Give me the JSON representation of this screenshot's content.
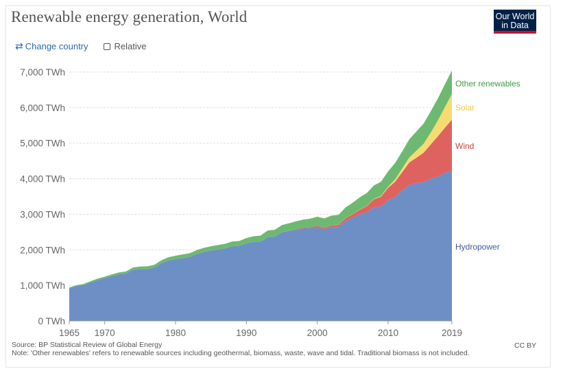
{
  "header": {
    "title": "Renewable energy generation, World",
    "logo_line1": "Our World",
    "logo_line2": "in Data"
  },
  "controls": {
    "change_country_label": "Change country",
    "relative_label": "Relative"
  },
  "footer": {
    "source": "Source: BP Statistical Review of Global Energy",
    "note": "Note: 'Other renewables' refers to renewable sources including geothermal, biomass, waste, wave and tidal. Traditional biomass is not included.",
    "license": "CC BY"
  },
  "icons": {
    "change_country": "swap-arrows-icon",
    "relative": "checkbox-icon"
  },
  "chart_data": {
    "type": "area",
    "stacked": true,
    "title": "Renewable energy generation, World",
    "ylim": [
      0,
      7000
    ],
    "y_ticks": [
      0,
      1000,
      2000,
      3000,
      4000,
      5000,
      6000,
      7000
    ],
    "y_tick_labels": [
      "0 TWh",
      "1,000 TWh",
      "2,000 TWh",
      "3,000 TWh",
      "4,000 TWh",
      "5,000 TWh",
      "6,000 TWh",
      "7,000 TWh"
    ],
    "x_ticks": [
      1965,
      1970,
      1980,
      1990,
      2000,
      2010,
      2019
    ],
    "x_tick_labels": [
      "1965",
      "1970",
      "1980",
      "1990",
      "2000",
      "2010",
      "2019"
    ],
    "xlim": [
      1965,
      2019
    ],
    "grid": true,
    "legend_placement": "right, inline labels at series ends",
    "x": [
      1965,
      1966,
      1967,
      1968,
      1969,
      1970,
      1971,
      1972,
      1973,
      1974,
      1975,
      1976,
      1977,
      1978,
      1979,
      1980,
      1981,
      1982,
      1983,
      1984,
      1985,
      1986,
      1987,
      1988,
      1989,
      1990,
      1991,
      1992,
      1993,
      1994,
      1995,
      1996,
      1997,
      1998,
      1999,
      2000,
      2001,
      2002,
      2003,
      2004,
      2005,
      2006,
      2007,
      2008,
      2009,
      2010,
      2011,
      2012,
      2013,
      2014,
      2015,
      2016,
      2017,
      2018,
      2019
    ],
    "series": [
      {
        "name": "Hydropower",
        "color": "#6d8fc5",
        "label_color": "#3e5c99",
        "values": [
          920,
          980,
          1010,
          1080,
          1150,
          1200,
          1260,
          1310,
          1330,
          1440,
          1460,
          1460,
          1500,
          1620,
          1700,
          1740,
          1770,
          1800,
          1880,
          1940,
          1980,
          2010,
          2040,
          2100,
          2110,
          2180,
          2220,
          2230,
          2360,
          2370,
          2490,
          2530,
          2570,
          2600,
          2610,
          2650,
          2580,
          2640,
          2640,
          2810,
          2900,
          3000,
          3060,
          3200,
          3220,
          3400,
          3480,
          3670,
          3820,
          3880,
          3900,
          4000,
          4060,
          4160,
          4230
        ]
      },
      {
        "name": "Wind",
        "color": "#de6360",
        "label_color": "#c93f3a",
        "values": [
          0,
          0,
          0,
          0,
          0,
          0,
          0,
          0,
          0,
          0,
          0,
          0,
          0,
          0,
          0,
          0,
          0,
          0,
          0,
          0,
          0,
          0,
          0,
          0,
          0,
          0,
          1,
          1,
          2,
          3,
          4,
          5,
          10,
          20,
          25,
          30,
          40,
          50,
          60,
          80,
          100,
          130,
          170,
          220,
          275,
          345,
          440,
          520,
          640,
          710,
          830,
          960,
          1130,
          1270,
          1430
        ]
      },
      {
        "name": "Solar",
        "color": "#f6dc70",
        "label_color": "#f2c743",
        "values": [
          0,
          0,
          0,
          0,
          0,
          0,
          0,
          0,
          0,
          0,
          0,
          0,
          0,
          0,
          0,
          0,
          0,
          0,
          0,
          0,
          0,
          0,
          0,
          0,
          0,
          0,
          0,
          0,
          0,
          0,
          0,
          0,
          0,
          0,
          0,
          1,
          2,
          3,
          4,
          4,
          5,
          6,
          8,
          12,
          20,
          32,
          64,
          100,
          140,
          200,
          250,
          330,
          440,
          580,
          720
        ]
      },
      {
        "name": "Other renewables",
        "color": "#6eb972",
        "label_color": "#3f9a45",
        "values": [
          20,
          25,
          30,
          35,
          40,
          45,
          50,
          55,
          60,
          65,
          70,
          75,
          80,
          85,
          90,
          95,
          100,
          105,
          110,
          115,
          120,
          125,
          130,
          135,
          140,
          150,
          160,
          170,
          180,
          190,
          200,
          210,
          220,
          230,
          240,
          250,
          260,
          270,
          280,
          300,
          320,
          340,
          360,
          380,
          400,
          430,
          460,
          480,
          510,
          540,
          570,
          600,
          620,
          640,
          660
        ]
      }
    ]
  }
}
